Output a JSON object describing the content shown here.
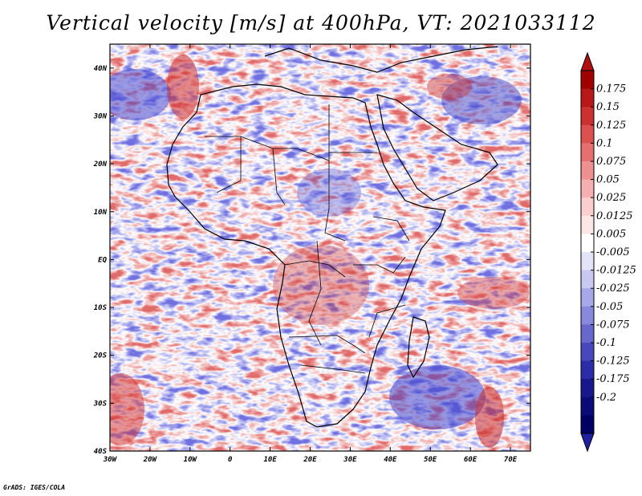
{
  "title": "Vertical velocity [m/s] at 400hPa, VT: 2021033112",
  "credit": "GrADS: IGES/COLA",
  "map": {
    "lon_labels": [
      "30W",
      "20W",
      "10W",
      "0",
      "10E",
      "20E",
      "30E",
      "40E",
      "50E",
      "60E",
      "70E"
    ],
    "lat_labels": [
      "40N",
      "30N",
      "20N",
      "10N",
      "EQ",
      "10S",
      "20S",
      "30S",
      "40S"
    ],
    "lon_range": [
      -30,
      75
    ],
    "lat_range": [
      -40,
      45
    ],
    "field_colors": {
      "ascent": "#d23232",
      "neutral": "#ffffff",
      "descent": "#4040d0"
    },
    "boundary_color": "#000000"
  },
  "colorbar": {
    "labels": [
      "0.175",
      "0.15",
      "0.125",
      "0.1",
      "0.075",
      "0.05",
      "0.025",
      "0.0125",
      "0.005",
      "-0.005",
      "-0.0125",
      "-0.025",
      "-0.05",
      "-0.075",
      "-0.1",
      "-0.125",
      "-0.175",
      "-0.2"
    ],
    "colors": [
      "#a00000",
      "#b81818",
      "#cc3030",
      "#dc5050",
      "#e67070",
      "#ee9090",
      "#f4b0b0",
      "#f9cece",
      "#fce6e6",
      "#ffffff",
      "#e4e4f8",
      "#c8c8f0",
      "#a8a8e8",
      "#8888dc",
      "#6868cc",
      "#4848bc",
      "#2c2ca8",
      "#18188c",
      "#0a0a78",
      "#000064"
    ],
    "tip_colors": [
      "#b01010",
      "#2020a0"
    ]
  }
}
